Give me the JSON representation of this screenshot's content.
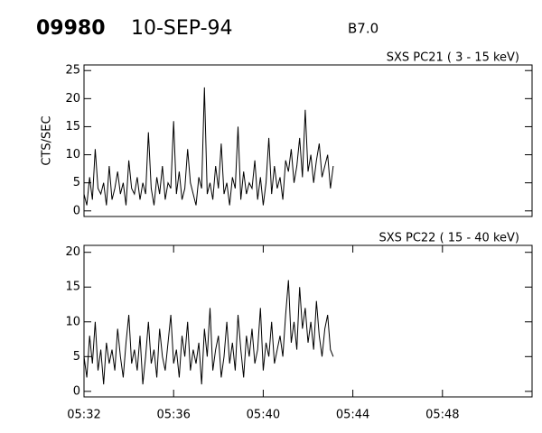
{
  "header": {
    "id": "09980",
    "date": "10-SEP-94",
    "class": "B7.0"
  },
  "chart_data": [
    {
      "type": "line",
      "title": "SXS PC21  (  3 - 15 keV)",
      "y_label": "CTS/SEC",
      "color": "#000000",
      "x": [
        332,
        332.125,
        332.25,
        332.375,
        332.5,
        332.625,
        332.75,
        332.875,
        333,
        333.125,
        333.25,
        333.375,
        333.5,
        333.625,
        333.75,
        333.875,
        334,
        334.125,
        334.25,
        334.375,
        334.5,
        334.625,
        334.75,
        334.875,
        335,
        335.125,
        335.25,
        335.375,
        335.5,
        335.625,
        335.75,
        335.875,
        336,
        336.125,
        336.25,
        336.375,
        336.5,
        336.625,
        336.75,
        336.875,
        337,
        337.125,
        337.25,
        337.375,
        337.5,
        337.625,
        337.75,
        337.875,
        338,
        338.125,
        338.25,
        338.375,
        338.5,
        338.625,
        338.75,
        338.875,
        339,
        339.125,
        339.25,
        339.375,
        339.5,
        339.625,
        339.75,
        339.875,
        340,
        340.125,
        340.25,
        340.375,
        340.5,
        340.625,
        340.75,
        340.875,
        341,
        341.125,
        341.25,
        341.375,
        341.5,
        341.625,
        341.75,
        341.875,
        342,
        342.125,
        342.25,
        342.375,
        342.5,
        342.625,
        342.75,
        342.875,
        343,
        343.125
      ],
      "values": [
        3,
        1,
        6,
        2,
        11,
        4,
        3,
        5,
        1,
        8,
        2,
        4,
        7,
        3,
        5,
        1,
        9,
        4,
        3,
        6,
        2,
        5,
        3,
        14,
        4,
        1,
        6,
        3,
        8,
        2,
        5,
        4,
        16,
        3,
        7,
        2,
        4,
        11,
        5,
        3,
        1,
        6,
        4,
        22,
        3,
        5,
        2,
        8,
        4,
        12,
        3,
        5,
        1,
        6,
        4,
        15,
        2,
        7,
        3,
        5,
        4,
        9,
        2,
        6,
        1,
        5,
        13,
        3,
        8,
        4,
        6,
        2,
        9,
        7,
        11,
        5,
        8,
        13,
        6,
        18,
        7,
        10,
        5,
        9,
        12,
        6,
        8,
        10,
        4,
        8
      ],
      "xlim": [
        332,
        352
      ],
      "ylim": [
        -1,
        26
      ],
      "yticks": [
        0,
        5,
        10,
        15,
        20,
        25
      ]
    },
    {
      "type": "line",
      "title": "SXS PC22  ( 15 - 40 keV)",
      "color": "#000000",
      "x": [
        332,
        332.125,
        332.25,
        332.375,
        332.5,
        332.625,
        332.75,
        332.875,
        333,
        333.125,
        333.25,
        333.375,
        333.5,
        333.625,
        333.75,
        333.875,
        334,
        334.125,
        334.25,
        334.375,
        334.5,
        334.625,
        334.75,
        334.875,
        335,
        335.125,
        335.25,
        335.375,
        335.5,
        335.625,
        335.75,
        335.875,
        336,
        336.125,
        336.25,
        336.375,
        336.5,
        336.625,
        336.75,
        336.875,
        337,
        337.125,
        337.25,
        337.375,
        337.5,
        337.625,
        337.75,
        337.875,
        338,
        338.125,
        338.25,
        338.375,
        338.5,
        338.625,
        338.75,
        338.875,
        339,
        339.125,
        339.25,
        339.375,
        339.5,
        339.625,
        339.75,
        339.875,
        340,
        340.125,
        340.25,
        340.375,
        340.5,
        340.625,
        340.75,
        340.875,
        341,
        341.125,
        341.25,
        341.375,
        341.5,
        341.625,
        341.75,
        341.875,
        342,
        342.125,
        342.25,
        342.375,
        342.5,
        342.625,
        342.75,
        342.875,
        343,
        343.125
      ],
      "values": [
        5,
        2,
        8,
        4,
        10,
        3,
        6,
        1,
        7,
        4,
        6,
        3,
        9,
        5,
        2,
        7,
        11,
        4,
        6,
        3,
        8,
        1,
        5,
        10,
        4,
        6,
        2,
        9,
        5,
        3,
        7,
        11,
        4,
        6,
        2,
        8,
        5,
        10,
        3,
        6,
        4,
        7,
        1,
        9,
        5,
        12,
        3,
        6,
        8,
        2,
        5,
        10,
        4,
        7,
        3,
        11,
        6,
        2,
        8,
        5,
        9,
        4,
        6,
        12,
        3,
        7,
        5,
        10,
        4,
        6,
        8,
        5,
        11,
        16,
        7,
        10,
        6,
        15,
        9,
        12,
        7,
        10,
        6,
        13,
        8,
        5,
        9,
        11,
        6,
        5
      ],
      "xlim": [
        332,
        352
      ],
      "ylim": [
        -0.8,
        21
      ],
      "yticks": [
        0,
        5,
        10,
        15,
        20
      ],
      "xticks": [
        {
          "value": 332,
          "label": "05:32"
        },
        {
          "value": 336,
          "label": "05:36"
        },
        {
          "value": 340,
          "label": "05:40"
        },
        {
          "value": 344,
          "label": "05:44"
        },
        {
          "value": 348,
          "label": "05:48"
        }
      ]
    }
  ]
}
